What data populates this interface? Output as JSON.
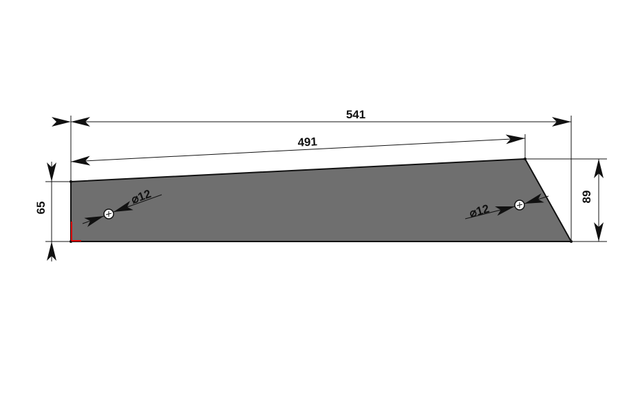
{
  "drawing": {
    "dimensions": {
      "overall_length": "541",
      "top_length": "491",
      "left_height": "65",
      "right_height": "89",
      "hole_left_diameter": "⌀12",
      "hole_right_diameter": "⌀12"
    },
    "colors": {
      "part_fill": "#6f6f6f",
      "line": "#111111",
      "origin_marker": "#e00000"
    }
  }
}
